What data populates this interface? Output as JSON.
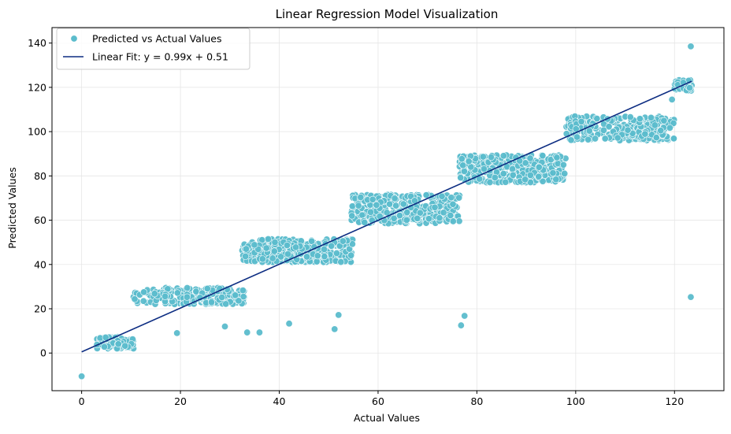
{
  "chart_data": {
    "type": "scatter",
    "title": "Linear Regression Model Visualization",
    "xlabel": "Actual Values",
    "ylabel": "Predicted Values",
    "xlim": [
      -6,
      130
    ],
    "ylim": [
      -17,
      147
    ],
    "xticks": [
      0,
      20,
      40,
      60,
      80,
      100,
      120
    ],
    "yticks": [
      0,
      20,
      40,
      60,
      80,
      100,
      120,
      140
    ],
    "grid": true,
    "legend_position": "top-left",
    "colors": {
      "scatter": "#5bbccc",
      "scatter_edge": "#ffffff",
      "fit_line": "#0d2d82",
      "grid": "#e6e6e6",
      "frame": "#000000"
    },
    "series": [
      {
        "name": "Predicted vs Actual Values",
        "kind": "scatter",
        "clusters": [
          {
            "x_range": [
              3,
              10.5
            ],
            "y_range": [
              2,
              7.5
            ],
            "count": 90
          },
          {
            "x_range": [
              10.5,
              33
            ],
            "y_range": [
              22,
              29.5
            ],
            "count": 220
          },
          {
            "x_range": [
              32.5,
              55
            ],
            "y_range": [
              41,
              51.5
            ],
            "count": 340
          },
          {
            "x_range": [
              54.5,
              76.5
            ],
            "y_range": [
              58.5,
              71.5
            ],
            "count": 360
          },
          {
            "x_range": [
              76.5,
              98
            ],
            "y_range": [
              77,
              89.5
            ],
            "count": 360
          },
          {
            "x_range": [
              98,
              120
            ],
            "y_range": [
              96,
              107
            ],
            "count": 260
          },
          {
            "x_range": [
              120,
              123.5
            ],
            "y_range": [
              118.5,
              123.5
            ],
            "count": 45
          }
        ],
        "outliers": [
          {
            "x": 0,
            "y": -10.5
          },
          {
            "x": 19.3,
            "y": 9
          },
          {
            "x": 29,
            "y": 12
          },
          {
            "x": 33.5,
            "y": 9.3
          },
          {
            "x": 36,
            "y": 9.3
          },
          {
            "x": 42,
            "y": 13.3
          },
          {
            "x": 51.2,
            "y": 10.8
          },
          {
            "x": 52,
            "y": 17.2
          },
          {
            "x": 76.8,
            "y": 12.5
          },
          {
            "x": 77.5,
            "y": 16.8
          },
          {
            "x": 123.3,
            "y": 25.3
          },
          {
            "x": 123.3,
            "y": 138.5
          },
          {
            "x": 119.5,
            "y": 114.5
          },
          {
            "x": 108.5,
            "y": 97.2
          },
          {
            "x": 75.2,
            "y": 59.5
          }
        ]
      },
      {
        "name": "Linear Fit: y = 0.99x + 0.51",
        "kind": "line",
        "slope": 0.99,
        "intercept": 0.51,
        "x_range": [
          0,
          123.5
        ]
      }
    ]
  }
}
